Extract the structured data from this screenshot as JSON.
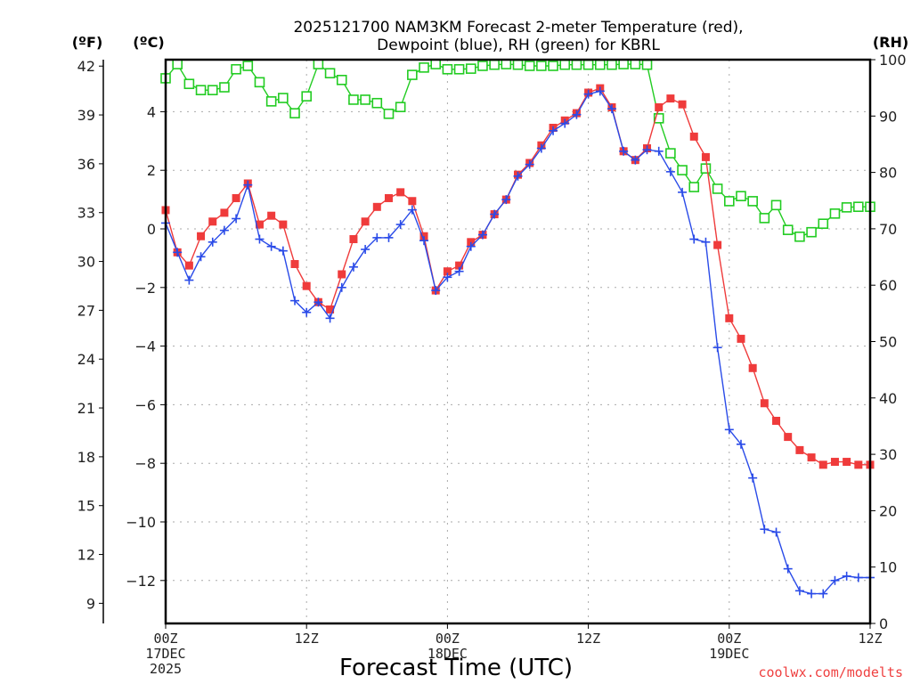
{
  "chart_data": {
    "type": "line",
    "title_lines": [
      "2025121700 NAM3KM Forecast 2-meter Temperature (red),",
      "Dewpoint (blue), RH (green) for KBRL"
    ],
    "xlabel": "Forecast Time (UTC)",
    "credit": "coolwx.com/modelts",
    "units": {
      "left_outer": "(ºF)",
      "left_inner": "(ºC)",
      "right": "(RH)"
    },
    "x": {
      "unit": "forecast hour",
      "range": [
        0,
        60
      ],
      "ticks": [
        {
          "hour": 0,
          "lines": [
            "00Z",
            "17DEC",
            "2025"
          ]
        },
        {
          "hour": 12,
          "lines": [
            "12Z"
          ]
        },
        {
          "hour": 24,
          "lines": [
            "00Z",
            "18DEC"
          ]
        },
        {
          "hour": 36,
          "lines": [
            "12Z"
          ]
        },
        {
          "hour": 48,
          "lines": [
            "00Z",
            "19DEC"
          ]
        },
        {
          "hour": 60,
          "lines": [
            "12Z"
          ]
        }
      ]
    },
    "y_celsius": {
      "range": [
        -13.5,
        5.6
      ],
      "ticks": [
        4,
        2,
        0,
        -2,
        -4,
        -6,
        -8,
        -10,
        -12
      ],
      "tick_labels": [
        "4",
        "2",
        "0",
        "−2",
        "−4",
        "−6",
        "−8",
        "−10",
        "−12"
      ]
    },
    "y_fahrenheit": {
      "ticks": [
        42,
        39,
        36,
        33,
        30,
        27,
        24,
        21,
        18,
        15,
        12,
        9
      ]
    },
    "y_rh": {
      "range": [
        0,
        100
      ],
      "ticks": [
        100,
        90,
        80,
        70,
        60,
        50,
        40,
        30,
        20,
        10,
        0
      ]
    },
    "grid": true,
    "series": [
      {
        "name": "2-meter Temperature",
        "axis": "celsius",
        "color": "#ef3b3b",
        "marker": "filled-square",
        "values": [
          0.64,
          -0.8,
          -1.25,
          -0.25,
          0.25,
          0.55,
          1.05,
          1.55,
          0.15,
          0.45,
          0.15,
          -1.2,
          -1.95,
          -2.5,
          -2.75,
          -1.55,
          -0.35,
          0.25,
          0.75,
          1.05,
          1.25,
          0.95,
          -0.25,
          -2.1,
          -1.45,
          -1.25,
          -0.45,
          -0.2,
          0.5,
          1.0,
          1.85,
          2.25,
          2.85,
          3.45,
          3.7,
          3.95,
          4.65,
          4.8,
          4.15,
          2.65,
          2.35,
          2.75,
          4.15,
          4.45,
          4.25,
          3.15,
          2.45,
          -0.55,
          -3.05,
          -3.75,
          -4.75,
          -5.95,
          -6.55,
          -7.1,
          -7.55,
          -7.8,
          -8.05,
          -7.95,
          -7.95,
          -8.05,
          -8.05
        ]
      },
      {
        "name": "Dewpoint",
        "axis": "celsius",
        "color": "#2a4be8",
        "marker": "plus",
        "values": [
          0.2,
          -0.8,
          -1.75,
          -0.95,
          -0.45,
          -0.05,
          0.35,
          1.5,
          -0.35,
          -0.6,
          -0.75,
          -2.45,
          -2.85,
          -2.5,
          -3.05,
          -2.0,
          -1.3,
          -0.7,
          -0.3,
          -0.3,
          0.15,
          0.65,
          -0.4,
          -2.1,
          -1.65,
          -1.45,
          -0.6,
          -0.2,
          0.5,
          1.0,
          1.8,
          2.2,
          2.75,
          3.35,
          3.6,
          3.9,
          4.6,
          4.7,
          4.1,
          2.65,
          2.35,
          2.7,
          2.65,
          1.95,
          1.25,
          -0.35,
          -0.45,
          -4.05,
          -6.85,
          -7.35,
          -8.5,
          -10.25,
          -10.35,
          -11.6,
          -12.35,
          -12.45,
          -12.45,
          -12.0,
          -11.85,
          -11.9,
          -11.9
        ]
      },
      {
        "name": "RH",
        "axis": "rh",
        "color": "#22cc22",
        "marker": "open-square",
        "values": [
          96.7,
          99.2,
          95.7,
          94.6,
          94.6,
          95.1,
          98.3,
          98.9,
          96.0,
          92.6,
          93.2,
          90.5,
          93.5,
          99.2,
          97.6,
          96.4,
          92.9,
          92.9,
          92.3,
          90.4,
          91.6,
          97.3,
          98.6,
          99.2,
          98.3,
          98.3,
          98.4,
          98.9,
          99.1,
          99.2,
          99.1,
          98.9,
          98.9,
          98.9,
          99.1,
          99.1,
          99.1,
          99.1,
          99.1,
          99.2,
          99.2,
          99.1,
          89.6,
          83.4,
          80.4,
          77.4,
          80.7,
          77.1,
          74.9,
          75.8,
          74.9,
          71.9,
          74.2,
          69.8,
          68.6,
          69.4,
          70.9,
          72.7,
          73.8,
          73.9,
          73.9
        ]
      }
    ]
  }
}
